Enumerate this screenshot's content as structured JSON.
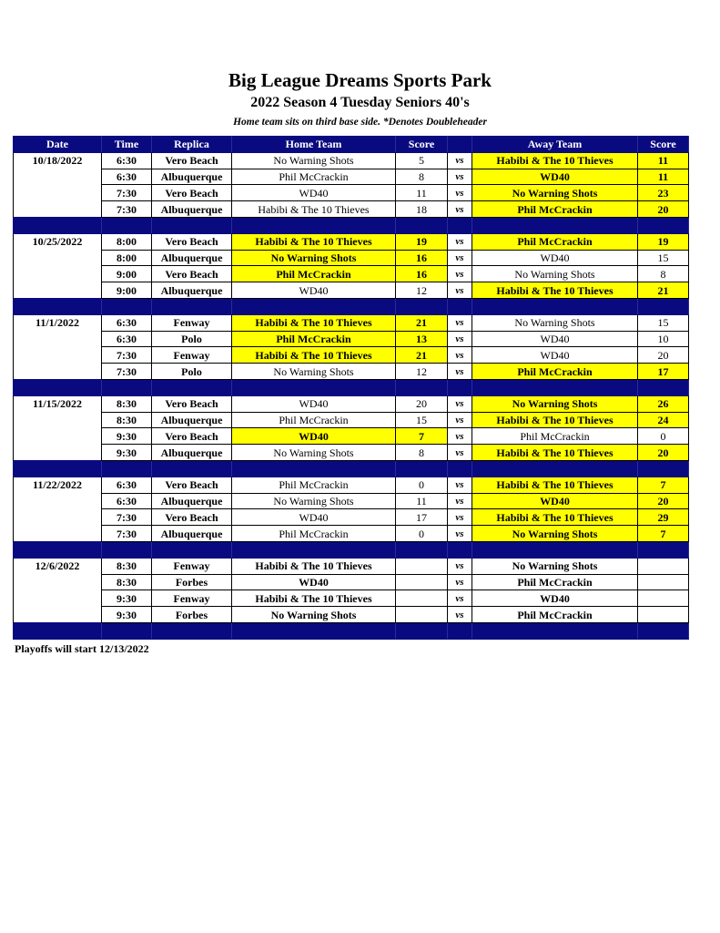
{
  "title": "Big League Dreams Sports Park",
  "subtitle": "2022 Season 4 Tuesday Seniors 40's",
  "note": "Home team sits on third base side.  *Denotes Doubleheader",
  "headers": [
    "Date",
    "Time",
    "Replica",
    "Home Team",
    "Score",
    "",
    "Away Team",
    "Score"
  ],
  "vs_label": "vs",
  "highlight_color": "#ffff00",
  "header_color": "#0a0a80",
  "weeks": [
    {
      "date": "10/18/2022",
      "games": [
        {
          "time": "6:30",
          "replica": "Vero Beach",
          "home": "No Warning Shots",
          "home_score": "5",
          "away": "Habibi & The 10 Thieves",
          "away_score": "11",
          "winner": "away"
        },
        {
          "time": "6:30",
          "replica": "Albuquerque",
          "home": "Phil McCrackin",
          "home_score": "8",
          "away": "WD40",
          "away_score": "11",
          "winner": "away"
        },
        {
          "time": "7:30",
          "replica": "Vero Beach",
          "home": "WD40",
          "home_score": "11",
          "away": "No Warning Shots",
          "away_score": "23",
          "winner": "away"
        },
        {
          "time": "7:30",
          "replica": "Albuquerque",
          "home": "Habibi & The 10 Thieves",
          "home_score": "18",
          "away": "Phil McCrackin",
          "away_score": "20",
          "winner": "away"
        }
      ]
    },
    {
      "date": "10/25/2022",
      "games": [
        {
          "time": "8:00",
          "replica": "Vero Beach",
          "home": "Habibi & The 10 Thieves",
          "home_score": "19",
          "away": "Phil McCrackin",
          "away_score": "19",
          "winner": "tie"
        },
        {
          "time": "8:00",
          "replica": "Albuquerque",
          "home": "No Warning Shots",
          "home_score": "16",
          "away": "WD40",
          "away_score": "15",
          "winner": "home"
        },
        {
          "time": "9:00",
          "replica": "Vero Beach",
          "home": "Phil McCrackin",
          "home_score": "16",
          "away": "No Warning Shots",
          "away_score": "8",
          "winner": "home"
        },
        {
          "time": "9:00",
          "replica": "Albuquerque",
          "home": "WD40",
          "home_score": "12",
          "away": "Habibi & The 10 Thieves",
          "away_score": "21",
          "winner": "away"
        }
      ]
    },
    {
      "date": "11/1/2022",
      "games": [
        {
          "time": "6:30",
          "replica": "Fenway",
          "home": "Habibi & The 10 Thieves",
          "home_score": "21",
          "away": "No Warning Shots",
          "away_score": "15",
          "winner": "home"
        },
        {
          "time": "6:30",
          "replica": "Polo",
          "home": "Phil McCrackin",
          "home_score": "13",
          "away": "WD40",
          "away_score": "10",
          "winner": "home"
        },
        {
          "time": "7:30",
          "replica": "Fenway",
          "home": "Habibi & The 10 Thieves",
          "home_score": "21",
          "away": "WD40",
          "away_score": "20",
          "winner": "home"
        },
        {
          "time": "7:30",
          "replica": "Polo",
          "home": "No Warning Shots",
          "home_score": "12",
          "away": "Phil McCrackin",
          "away_score": "17",
          "winner": "away"
        }
      ]
    },
    {
      "date": "11/15/2022",
      "games": [
        {
          "time": "8:30",
          "replica": "Vero Beach",
          "home": "WD40",
          "home_score": "20",
          "away": "No Warning Shots",
          "away_score": "26",
          "winner": "away"
        },
        {
          "time": "8:30",
          "replica": "Albuquerque",
          "home": "Phil McCrackin",
          "home_score": "15",
          "away": "Habibi & The 10 Thieves",
          "away_score": "24",
          "winner": "away"
        },
        {
          "time": "9:30",
          "replica": "Vero Beach",
          "home": "WD40",
          "home_score": "7",
          "away": "Phil McCrackin",
          "away_score": "0",
          "winner": "home"
        },
        {
          "time": "9:30",
          "replica": "Albuquerque",
          "home": "No Warning Shots",
          "home_score": "8",
          "away": "Habibi & The 10 Thieves",
          "away_score": "20",
          "winner": "away"
        }
      ]
    },
    {
      "date": "11/22/2022",
      "games": [
        {
          "time": "6:30",
          "replica": "Vero Beach",
          "home": "Phil McCrackin",
          "home_score": "0",
          "away": "Habibi & The 10 Thieves",
          "away_score": "7",
          "winner": "away"
        },
        {
          "time": "6:30",
          "replica": "Albuquerque",
          "home": "No Warning Shots",
          "home_score": "11",
          "away": "WD40",
          "away_score": "20",
          "winner": "away"
        },
        {
          "time": "7:30",
          "replica": "Vero Beach",
          "home": "WD40",
          "home_score": "17",
          "away": "Habibi & The 10 Thieves",
          "away_score": "29",
          "winner": "away"
        },
        {
          "time": "7:30",
          "replica": "Albuquerque",
          "home": "Phil McCrackin",
          "home_score": "0",
          "away": "No Warning Shots",
          "away_score": "7",
          "winner": "away"
        }
      ]
    },
    {
      "date": "12/6/2022",
      "games": [
        {
          "time": "8:30",
          "replica": "Fenway",
          "home": "Habibi & The 10 Thieves",
          "home_score": "",
          "away": "No Warning Shots",
          "away_score": "",
          "winner": "none"
        },
        {
          "time": "8:30",
          "replica": "Forbes",
          "home": "WD40",
          "home_score": "",
          "away": "Phil McCrackin",
          "away_score": "",
          "winner": "none"
        },
        {
          "time": "9:30",
          "replica": "Fenway",
          "home": "Habibi & The 10 Thieves",
          "home_score": "",
          "away": "WD40",
          "away_score": "",
          "winner": "none"
        },
        {
          "time": "9:30",
          "replica": "Forbes",
          "home": "No Warning Shots",
          "home_score": "",
          "away": "Phil McCrackin",
          "away_score": "",
          "winner": "none"
        }
      ]
    }
  ],
  "footer": "Playoffs will start 12/13/2022"
}
